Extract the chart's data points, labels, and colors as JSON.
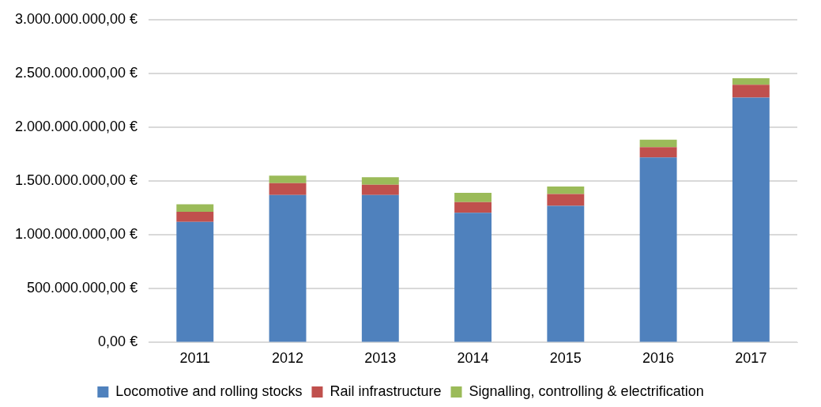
{
  "chart_data": {
    "type": "bar",
    "stacked": true,
    "categories": [
      "2011",
      "2012",
      "2013",
      "2014",
      "2015",
      "2016",
      "2017"
    ],
    "series": [
      {
        "name": "Locomotive and rolling stocks",
        "color": "#4f81bd",
        "values": [
          1120000000,
          1370000000,
          1370000000,
          1205000000,
          1270000000,
          1720000000,
          2275000000
        ]
      },
      {
        "name": "Rail infrastructure",
        "color": "#c0504d",
        "values": [
          95000000,
          110000000,
          95000000,
          100000000,
          110000000,
          95000000,
          120000000
        ]
      },
      {
        "name": "Signalling, controlling & electrification",
        "color": "#9bbb59",
        "values": [
          70000000,
          70000000,
          70000000,
          85000000,
          70000000,
          70000000,
          60000000
        ]
      }
    ],
    "ylim": [
      0,
      3000000000
    ],
    "yticks": [
      {
        "value": 0,
        "label": "0,00 €"
      },
      {
        "value": 500000000,
        "label": "500.000.000,00 €"
      },
      {
        "value": 1000000000,
        "label": "1.000.000.000,00 €"
      },
      {
        "value": 1500000000,
        "label": "1.500.000.000,00 €"
      },
      {
        "value": 2000000000,
        "label": "2.000.000.000,00 €"
      },
      {
        "value": 2500000000,
        "label": "2.500.000.000,00 €"
      },
      {
        "value": 3000000000,
        "label": "3.000.000.000,00 €"
      }
    ],
    "grid": "y",
    "legend": "bottom"
  }
}
